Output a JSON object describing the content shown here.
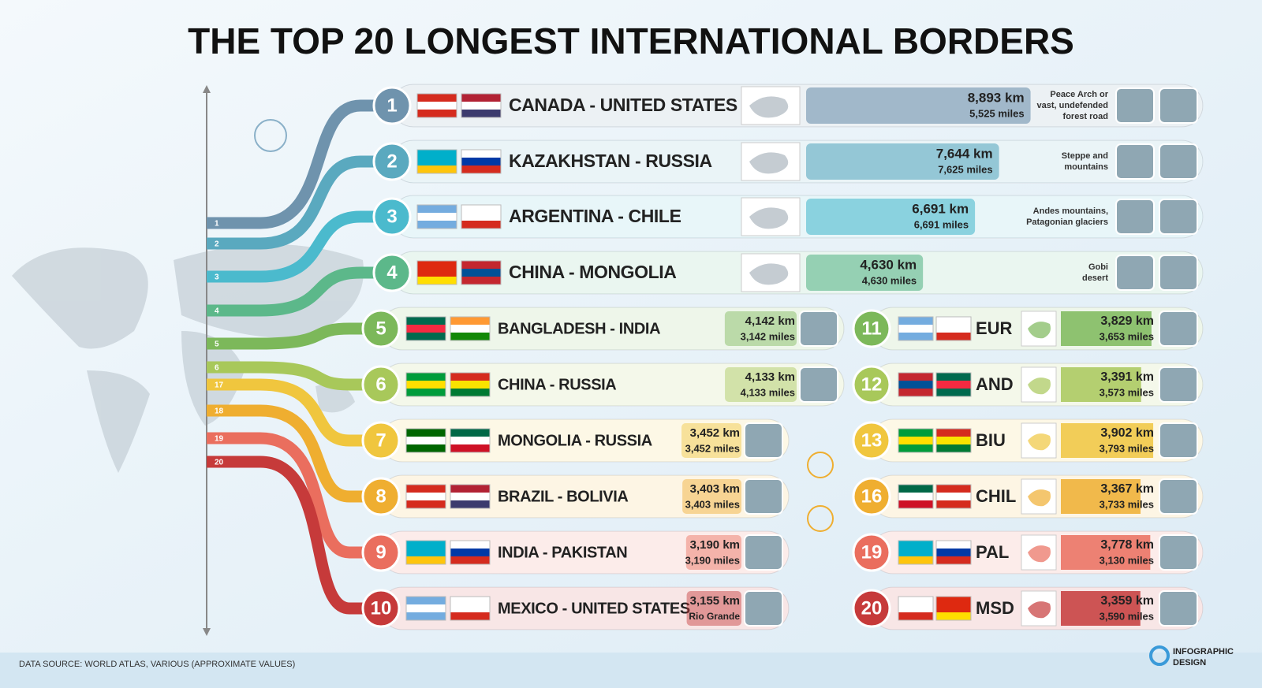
{
  "title": "THE TOP 20 LONGEST INTERNATIONAL BORDERS",
  "side_labels": [
    1,
    2,
    3,
    4,
    5,
    6,
    17,
    18,
    19,
    20
  ],
  "main": [
    {
      "rank": 1,
      "pair": "CANADA - UNITED STATES",
      "km": 8893,
      "km_label": "8,893 km",
      "miles_label": "5,525 miles",
      "note": [
        "Peace Arch or",
        "vast, undefended",
        "forest road"
      ],
      "color": "#6f93ad"
    },
    {
      "rank": 2,
      "pair": "KAZAKHSTAN - RUSSIA",
      "km": 7644,
      "km_label": "7,644 km",
      "miles_label": "7,625 miles",
      "note": [
        "Steppe and",
        "mountains"
      ],
      "color": "#5aa9bf"
    },
    {
      "rank": 3,
      "pair": "ARGENTINA - CHILE",
      "km": 6691,
      "km_label": "6,691 km",
      "miles_label": "6,691 miles",
      "note": [
        "Andes mountains,",
        "Patagonian glaciers"
      ],
      "color": "#4bbacd"
    },
    {
      "rank": 4,
      "pair": "CHINA - MONGOLIA",
      "km": 4630,
      "km_label": "4,630 km",
      "miles_label": "4,630 miles",
      "note": [
        "Gobi",
        "desert"
      ],
      "color": "#5cb88a"
    },
    {
      "rank": 5,
      "pair": "BANGLADESH - INDIA",
      "km": 4142,
      "km_label": "4,142 km",
      "miles_label": "3,142 miles",
      "color": "#7cb85a"
    },
    {
      "rank": 6,
      "pair": "CHINA - RUSSIA",
      "km": 4133,
      "km_label": "4,133 km",
      "miles_label": "4,133 miles",
      "color": "#a8c85a"
    },
    {
      "rank": 7,
      "pair": "MONGOLIA - RUSSIA",
      "km": 3452,
      "km_label": "3,452 km",
      "miles_label": "3,452 miles",
      "color": "#f0c63e"
    },
    {
      "rank": 8,
      "pair": "BRAZIL - BOLIVIA",
      "km": 3403,
      "km_label": "3,403 km",
      "miles_label": "3,403 miles",
      "color": "#efae30"
    },
    {
      "rank": 9,
      "pair": "INDIA - PAKISTAN",
      "km": 3190,
      "km_label": "3,190 km",
      "miles_label": "3,190 miles",
      "color": "#ea6e5e"
    },
    {
      "rank": 10,
      "pair": "MEXICO - UNITED STATES",
      "km": 3155,
      "km_label": "3,155 km",
      "note": [
        "Rio Grande"
      ],
      "color": "#c63a3a"
    }
  ],
  "side": [
    {
      "rank": 11,
      "pair": "EUR",
      "km": 3829,
      "km_label": "3,829 km",
      "miles_label": "3,653 miles",
      "color": "#7cb85a"
    },
    {
      "rank": 12,
      "pair": "AND",
      "km": 3391,
      "km_label": "3,391 km",
      "miles_label": "3,573 miles",
      "color": "#a8c85a"
    },
    {
      "rank": 13,
      "pair": "BIU",
      "km": 3902,
      "km_label": "3,902 km",
      "miles_label": "3,793 miles",
      "color": "#f0c63e"
    },
    {
      "rank": 16,
      "pair": "CHIL",
      "km": 3367,
      "km_label": "3,367 km",
      "miles_label": "3,733 miles",
      "color": "#efae30"
    },
    {
      "rank": 19,
      "pair": "PAL",
      "km": 3778,
      "km_label": "3,778 km",
      "miles_label": "3,130 miles",
      "color": "#ea6e5e"
    },
    {
      "rank": 20,
      "pair": "MSD",
      "km": 3359,
      "km_label": "3,359 km",
      "miles_label": "3,590 miles",
      "color": "#c63a3a"
    }
  ],
  "source": "DATA SOURCE: WORLD ATLAS, VARIOUS (APPROXIMATE VALUES)",
  "logo": [
    "INFOGRAPHIC",
    "DESIGN"
  ]
}
